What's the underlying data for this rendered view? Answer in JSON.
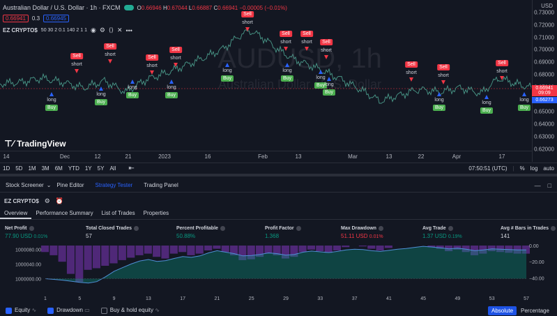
{
  "header": {
    "symbol_title": "Australian Dollar / U.S. Dollar · 1h · FXCM",
    "ohlc": {
      "o_label": "O",
      "o": "0.66946",
      "h_label": "H",
      "h": "0.67044",
      "l_label": "L",
      "l": "0.66887",
      "c_label": "C",
      "c": "0.66941",
      "chg": "−0.00005 (−0.01%)"
    },
    "bid": "0.66941",
    "spread": "0.3",
    "ask": "0.66945",
    "indicator_name": "EZ CRYPTO$",
    "indicator_params": "50 30 2 0.1 140 2 1 1"
  },
  "watermark": {
    "symbol": "AUDUSD, 1h",
    "name": "Australian Dollar / U.S. Dollar"
  },
  "logo_text": "TradingView",
  "price_scale": {
    "currency": "USD",
    "ticks": [
      "0.73000",
      "0.72000",
      "0.71000",
      "0.70000",
      "0.69000",
      "0.68000",
      "0.67000",
      "0.66000",
      "0.65000",
      "0.64000",
      "0.63000",
      "0.62000"
    ],
    "last_price": "0.66941",
    "countdown": "09:09",
    "other_price": "0.66273"
  },
  "time_axis": [
    "14",
    "Dec",
    "12",
    "21",
    "2023",
    "16",
    "Feb",
    "13",
    "Mar",
    "13",
    "22",
    "Apr",
    "17"
  ],
  "signals": [
    {
      "type": "sell",
      "label": "Sell",
      "sub": "short"
    },
    {
      "type": "sell",
      "label": "Sell",
      "sub": "short"
    },
    {
      "type": "sell",
      "label": "Sell",
      "sub": "short"
    },
    {
      "type": "sell",
      "label": "Sell",
      "sub": "short"
    },
    {
      "type": "sell",
      "label": "Sell",
      "sub": "short"
    },
    {
      "type": "sell",
      "label": "Sell",
      "sub": "short"
    },
    {
      "type": "sell",
      "label": "Sell",
      "sub": "short"
    },
    {
      "type": "sell",
      "label": "Sell",
      "sub": "short"
    },
    {
      "type": "sell",
      "label": "Sell",
      "sub": "short"
    },
    {
      "type": "sell",
      "label": "Sell",
      "sub": "short"
    },
    {
      "type": "sell",
      "label": "Sell",
      "sub": "short"
    },
    {
      "type": "buy",
      "label": "Buy",
      "sub": "long"
    },
    {
      "type": "buy",
      "label": "Buy",
      "sub": "long"
    },
    {
      "type": "buy",
      "label": "Buy",
      "sub": "long"
    },
    {
      "type": "buy",
      "label": "Buy",
      "sub": "long"
    },
    {
      "type": "buy",
      "label": "Buy",
      "sub": "long"
    },
    {
      "type": "buy",
      "label": "Buy",
      "sub": "long"
    },
    {
      "type": "buy",
      "label": "Buy",
      "sub": "long"
    },
    {
      "type": "buy",
      "label": "Buy",
      "sub": "long"
    },
    {
      "type": "buy",
      "label": "Buy",
      "sub": "long"
    },
    {
      "type": "buy",
      "label": "Buy",
      "sub": "long"
    },
    {
      "type": "buy",
      "label": "Buy",
      "sub": "long"
    }
  ],
  "range_bar": {
    "ranges": [
      "1D",
      "5D",
      "1M",
      "3M",
      "6M",
      "YTD",
      "1Y",
      "5Y",
      "All"
    ],
    "clock": "07:50:51 (UTC)",
    "pct": "%",
    "log": "log",
    "auto": "auto"
  },
  "panel_tabs": [
    "Stock Screener",
    "Pine Editor",
    "Strategy Tester",
    "Trading Panel"
  ],
  "strategy_title": "EZ CRYPTO$",
  "sub_tabs": [
    "Overview",
    "Performance Summary",
    "List of Trades",
    "Properties"
  ],
  "metrics": [
    {
      "label": "Net Profit",
      "value": "77.90 USD",
      "pct": "0.01%",
      "color": "#089981"
    },
    {
      "label": "Total Closed Trades",
      "value": "57",
      "pct": "",
      "color": "#d1d4dc"
    },
    {
      "label": "Percent Profitable",
      "value": "50.88%",
      "pct": "",
      "color": "#089981"
    },
    {
      "label": "Profit Factor",
      "value": "1.368",
      "pct": "",
      "color": "#089981"
    },
    {
      "label": "Max Drawdown",
      "value": "51.11 USD",
      "pct": "0.01%",
      "color": "#f23645"
    },
    {
      "label": "Avg Trade",
      "value": "1.37 USD",
      "pct": "0.19%",
      "color": "#089981"
    },
    {
      "label": "Avg # Bars in Trades",
      "value": "141",
      "pct": "",
      "color": "#d1d4dc"
    }
  ],
  "chart_data": {
    "type": "area",
    "y_left_ticks": [
      "1000080.00",
      "1000040.00",
      "1000000.00"
    ],
    "y_right_ticks": [
      "0.00",
      "−20.00",
      "−40.00"
    ],
    "x_ticks": [
      "1",
      "5",
      "9",
      "13",
      "17",
      "21",
      "25",
      "29",
      "33",
      "37",
      "41",
      "45",
      "49",
      "53",
      "57"
    ],
    "equity": [
      1000000,
      999998,
      999996,
      999993,
      999990,
      999988,
      999992,
      1000005,
      1000020,
      1000030,
      1000040,
      1000048,
      1000052,
      1000047,
      1000049,
      1000055,
      1000060,
      1000058,
      1000062,
      1000070,
      1000076,
      1000072,
      1000068,
      1000062,
      1000063,
      1000066,
      1000070,
      1000068,
      1000064,
      1000066,
      1000072,
      1000075,
      1000073,
      1000071,
      1000074,
      1000078,
      1000080,
      1000079,
      1000076,
      1000074,
      1000077,
      1000080,
      1000082,
      1000085,
      1000088,
      1000086,
      1000084,
      1000081,
      1000083,
      1000080,
      1000076,
      1000078,
      1000081,
      1000080,
      1000079,
      1000078,
      1000078
    ],
    "drawdown": [
      -8,
      -12,
      -20,
      -35,
      -45,
      -30,
      -28,
      -25,
      -22,
      -18,
      -15,
      -12,
      -10,
      -14,
      -16,
      -10,
      -8,
      -12,
      -10,
      -6,
      -4,
      -8,
      -12,
      -18,
      -17,
      -14,
      -10,
      -12,
      -16,
      -14,
      -8,
      -5,
      -7,
      -9,
      -6,
      -2,
      0,
      -1,
      -4,
      -6,
      -3,
      0,
      0,
      0,
      0,
      -2,
      -4,
      -7,
      -5,
      -8,
      -12,
      -10,
      -7,
      -8,
      -9,
      -10,
      -10
    ],
    "legend": [
      "Equity",
      "Drawdown",
      "Buy & hold equity"
    ]
  },
  "bottom_bar": {
    "absolute": "Absolute",
    "percentage": "Percentage"
  }
}
